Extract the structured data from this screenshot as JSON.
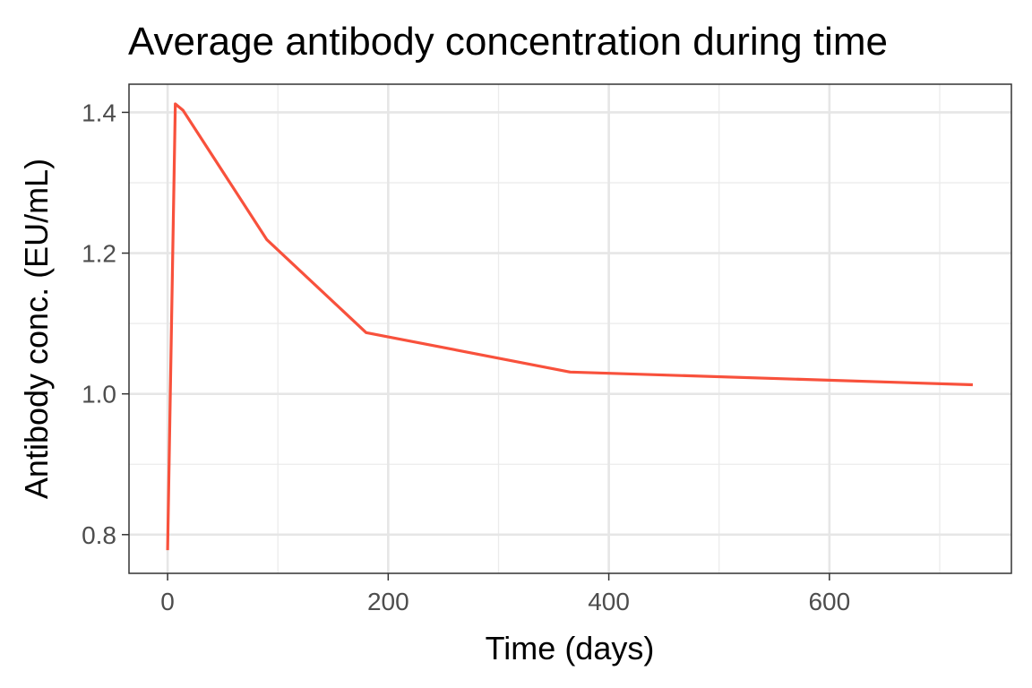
{
  "chart_data": {
    "type": "line",
    "title": "Average antibody concentration during time",
    "xlabel": "Time (days)",
    "ylabel": "Antibody conc. (EU/mL)",
    "xlim": [
      -35,
      765
    ],
    "ylim": [
      0.745,
      1.44
    ],
    "x_ticks": [
      0,
      200,
      400,
      600
    ],
    "x_tick_labels": [
      "0",
      "200",
      "400",
      "600"
    ],
    "x_minor_ticks": [
      100,
      300,
      500,
      700
    ],
    "y_ticks": [
      0.8,
      1.0,
      1.2,
      1.4
    ],
    "y_tick_labels": [
      "0.8",
      "1.0",
      "1.2",
      "1.4"
    ],
    "y_minor_ticks": [
      0.9,
      1.1,
      1.3
    ],
    "grid": true,
    "series": [
      {
        "color": "#F8513C",
        "x": [
          0,
          7,
          14,
          90,
          180,
          365,
          730
        ],
        "y": [
          0.778,
          1.412,
          1.403,
          1.219,
          1.087,
          1.031,
          1.013
        ]
      }
    ]
  }
}
